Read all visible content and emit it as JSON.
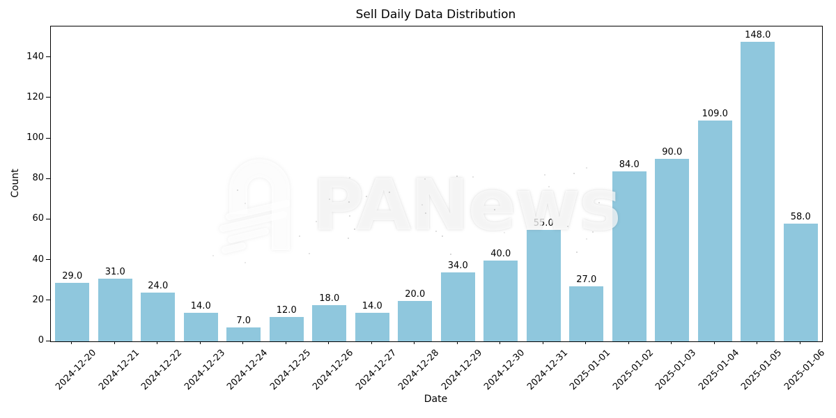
{
  "figure": {
    "watermark": {
      "text": "PANews"
    }
  },
  "chart_data": {
    "type": "bar",
    "title": "Sell Daily Data Distribution",
    "xlabel": "Date",
    "ylabel": "Count",
    "categories": [
      "2024-12-20",
      "2024-12-21",
      "2024-12-22",
      "2024-12-23",
      "2024-12-24",
      "2024-12-25",
      "2024-12-26",
      "2024-12-27",
      "2024-12-28",
      "2024-12-29",
      "2024-12-30",
      "2024-12-31",
      "2025-01-01",
      "2025-01-02",
      "2025-01-03",
      "2025-01-04",
      "2025-01-05",
      "2025-01-06"
    ],
    "values": [
      29,
      31,
      24,
      14,
      7,
      12,
      18,
      14,
      20,
      34,
      40,
      55,
      27,
      84,
      90,
      109,
      148,
      58
    ],
    "bar_labels": [
      "29.0",
      "31.0",
      "24.0",
      "14.0",
      "7.0",
      "12.0",
      "18.0",
      "14.0",
      "20.0",
      "34.0",
      "40.0",
      "55.0",
      "27.0",
      "84.0",
      "90.0",
      "109.0",
      "148.0",
      "58.0"
    ],
    "yticks": [
      0,
      20,
      40,
      60,
      80,
      100,
      120,
      140
    ],
    "ylim": [
      0,
      155.4
    ],
    "bar_color": "#8FC7DD",
    "grid": false,
    "legend": null,
    "x_tick_rotation_deg": 45
  }
}
